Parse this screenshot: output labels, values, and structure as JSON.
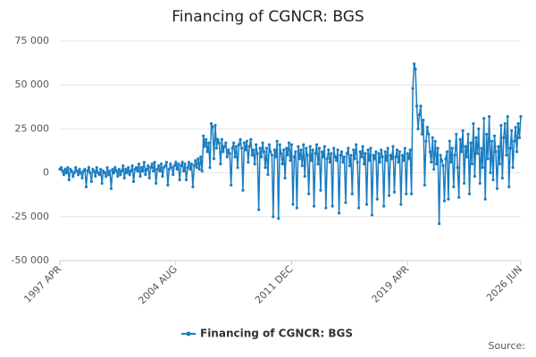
{
  "chart_data": {
    "type": "line",
    "title": "Financing of CGNCR: BGS",
    "source": "Source:",
    "categories": [
      "1997 APR",
      null,
      null,
      null,
      null,
      null,
      null,
      null,
      null,
      null,
      null,
      null,
      null,
      null,
      null,
      null,
      null,
      null,
      null,
      null,
      null,
      null,
      null,
      null,
      null,
      null,
      null,
      null,
      null,
      null,
      null,
      null,
      null,
      null,
      null,
      null,
      null,
      null,
      null,
      null,
      null,
      null,
      null,
      null,
      null,
      null,
      null,
      null,
      null,
      null,
      null,
      null,
      null,
      null,
      null,
      null,
      null,
      null,
      null,
      null,
      null,
      null,
      null,
      null,
      null,
      null,
      null,
      null,
      null,
      null,
      null,
      null,
      null,
      null,
      null,
      null,
      null,
      null,
      null,
      null,
      null,
      null,
      null,
      null,
      null,
      null,
      null,
      null,
      "2004 AUG",
      null,
      null,
      null,
      null,
      null,
      null,
      null,
      null,
      null,
      null,
      null,
      null,
      null,
      null,
      null,
      null,
      null,
      null,
      null,
      null,
      null,
      null,
      null,
      null,
      null,
      null,
      null,
      null,
      null,
      null,
      null,
      null,
      null,
      null,
      null,
      null,
      null,
      null,
      null,
      null,
      null,
      null,
      null,
      null,
      null,
      null,
      null,
      null,
      null,
      null,
      null,
      null,
      null,
      null,
      null,
      null,
      null,
      null,
      null,
      null,
      null,
      null,
      null,
      null,
      null,
      null,
      null,
      null,
      null,
      null,
      null,
      null,
      null,
      null,
      null,
      null,
      null,
      null,
      null,
      null,
      null,
      null,
      null,
      null,
      null,
      null,
      null,
      "2011 DEC",
      null,
      null,
      null,
      null,
      null,
      null,
      null,
      null,
      null,
      null,
      null,
      null,
      null,
      null,
      null,
      null,
      null,
      null,
      null,
      null,
      null,
      null,
      null,
      null,
      null,
      null,
      null,
      null,
      null,
      null,
      null,
      null,
      null,
      null,
      null,
      null,
      null,
      null,
      null,
      null,
      null,
      null,
      null,
      null,
      null,
      null,
      null,
      null,
      null,
      null,
      null,
      null,
      null,
      null,
      null,
      null,
      null,
      null,
      null,
      null,
      null,
      null,
      null,
      null,
      null,
      null,
      null,
      null,
      null,
      null,
      null,
      null,
      null,
      null,
      null,
      null,
      null,
      null,
      null,
      null,
      null,
      null,
      null,
      null,
      null,
      null,
      null,
      "2019 APR",
      null,
      null,
      null,
      null,
      null,
      null,
      null,
      null,
      null,
      null,
      null,
      null,
      null,
      null,
      null,
      null,
      null,
      null,
      null,
      null,
      null,
      null,
      null,
      null,
      null,
      null,
      null,
      null,
      null,
      null,
      null,
      null,
      null,
      null,
      null,
      null,
      null,
      null,
      null,
      null,
      null,
      null,
      null,
      null,
      null,
      null,
      null,
      null,
      null,
      null,
      null,
      null,
      null,
      null,
      null,
      null,
      null,
      null,
      null,
      null,
      null,
      null,
      null,
      null,
      null,
      null,
      null,
      null,
      null,
      null,
      null,
      null,
      null,
      null,
      null,
      null,
      null,
      null,
      null,
      null,
      null,
      null,
      null,
      null,
      null,
      "2026 JUN"
    ],
    "series": [
      {
        "name": "Financing of CGNCR: BGS",
        "color": "#1a7dc0",
        "values": [
          2000,
          3000,
          1000,
          -1000,
          2000,
          0,
          3000,
          -4000,
          2000,
          1000,
          -2000,
          0,
          3000,
          1000,
          -1000,
          2000,
          0,
          -3000,
          1000,
          2000,
          -8000,
          1000,
          3000,
          0,
          -5000,
          2000,
          1000,
          -2000,
          3000,
          0,
          -1000,
          2000,
          -6000,
          1000,
          0,
          -2000,
          3000,
          -1000,
          1000,
          -9000,
          2000,
          0,
          3000,
          1000,
          -2000,
          2000,
          -1000,
          1000,
          4000,
          -3000,
          2000,
          0,
          3000,
          -1000,
          1000,
          4000,
          -5000,
          2000,
          3000,
          1000,
          5000,
          -2000,
          3000,
          1000,
          6000,
          -1000,
          2000,
          4000,
          -3000,
          3000,
          5000,
          1000,
          6000,
          -6000,
          2000,
          4000,
          1000,
          5000,
          -2000,
          3000,
          4000,
          6000,
          -7000,
          2000,
          5000,
          3000,
          -1000,
          4000,
          6000,
          2000,
          5000,
          -4000,
          4000,
          6000,
          1000,
          5000,
          -4000,
          3000,
          6000,
          2000,
          5000,
          -8000,
          4000,
          7000,
          3000,
          8000,
          2000,
          9000,
          1000,
          21000,
          15000,
          19000,
          12000,
          17000,
          3000,
          28000,
          26000,
          8000,
          27000,
          14000,
          19000,
          17000,
          5000,
          19000,
          12000,
          15000,
          17000,
          9000,
          13000,
          11000,
          -7000,
          14000,
          17000,
          9000,
          15000,
          3000,
          16000,
          19000,
          14000,
          -10000,
          17000,
          13000,
          18000,
          6000,
          15000,
          19000,
          10000,
          13000,
          5000,
          16000,
          11000,
          -21000,
          14000,
          9000,
          17000,
          12000,
          3000,
          14000,
          -1000,
          16000,
          12000,
          10000,
          -25000,
          13000,
          9000,
          18000,
          -26000,
          16000,
          11000,
          5000,
          13000,
          -3000,
          14000,
          10000,
          17000,
          7000,
          16000,
          -18000,
          9000,
          12000,
          -20000,
          15000,
          8000,
          13000,
          4000,
          16000,
          -2000,
          14000,
          10000,
          -12000,
          15000,
          7000,
          13000,
          -19000,
          11000,
          16000,
          5000,
          14000,
          -10000,
          12000,
          9000,
          15000,
          -20000,
          8000,
          13000,
          6000,
          11000,
          -19000,
          14000,
          9000,
          7000,
          13000,
          -23000,
          10000,
          12000,
          6000,
          9000,
          -17000,
          11000,
          14000,
          4000,
          10000,
          -12000,
          13000,
          8000,
          16000,
          6000,
          -20000,
          12000,
          9000,
          15000,
          5000,
          11000,
          -18000,
          13000,
          7000,
          14000,
          -24000,
          10000,
          8000,
          12000,
          -15000,
          11000,
          6000,
          13000,
          9000,
          -19000,
          12000,
          7000,
          14000,
          -13000,
          10000,
          8000,
          15000,
          -11000,
          9000,
          13000,
          6000,
          12000,
          -18000,
          10000,
          7000,
          14000,
          -12000,
          11000,
          8000,
          13000,
          -12000,
          48000,
          62000,
          59000,
          38000,
          25000,
          33000,
          38000,
          22000,
          30000,
          -7000,
          18000,
          26000,
          22000,
          12000,
          6000,
          20000,
          2000,
          18000,
          5000,
          14000,
          -29000,
          10000,
          7000,
          4000,
          -16000,
          8000,
          12000,
          -15000,
          18000,
          6000,
          14000,
          -8000,
          10000,
          22000,
          3000,
          -14000,
          19000,
          12000,
          24000,
          -6000,
          15000,
          9000,
          22000,
          -12000,
          17000,
          5000,
          28000,
          -2000,
          20000,
          11000,
          25000,
          -6000,
          14000,
          3000,
          31000,
          -15000,
          22000,
          8000,
          32000,
          0,
          18000,
          -4000,
          21000,
          12000,
          -9000,
          15000,
          5000,
          27000,
          -3000,
          20000,
          28000,
          10000,
          32000,
          -8000,
          14000,
          24000,
          3000,
          18000,
          26000,
          12000,
          28000,
          20000,
          32000
        ]
      }
    ],
    "ylim": [
      -50000,
      75000
    ],
    "yticks": [
      {
        "value": -50000,
        "label": "-50 000"
      },
      {
        "value": -25000,
        "label": "-25 000"
      },
      0,
      {
        "value": 25000,
        "label": "25 000"
      },
      {
        "value": 50000,
        "label": "50 000"
      },
      {
        "value": 75000,
        "label": "75 000"
      }
    ],
    "grid": true,
    "legend": "bottom"
  }
}
